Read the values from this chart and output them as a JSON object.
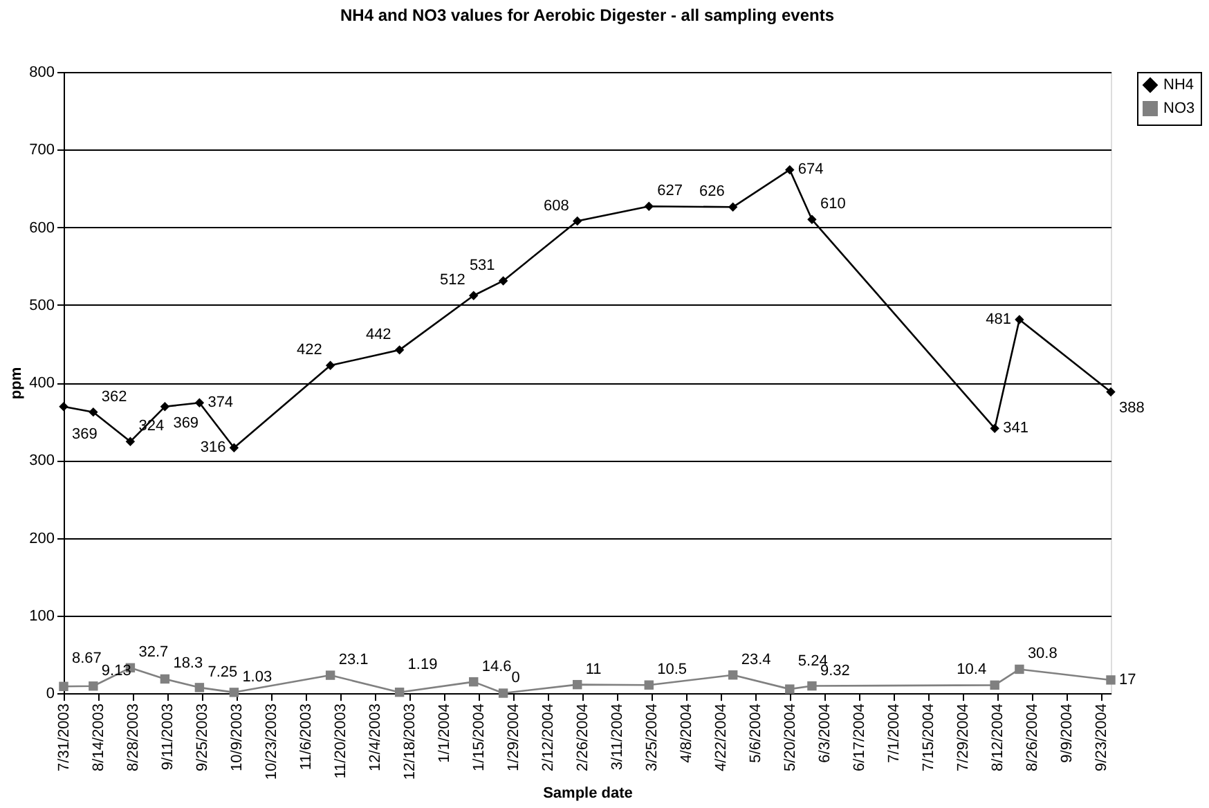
{
  "chart_data": {
    "type": "line",
    "title": "NH4 and NO3 values for Aerobic Digester - all sampling events",
    "xlabel": "Sample date",
    "ylabel": "ppm",
    "x": [
      "2003-07-31",
      "2003-08-12",
      "2003-08-27",
      "2003-09-10",
      "2003-09-24",
      "2003-10-08",
      "2003-11-16",
      "2003-12-14",
      "2004-01-13",
      "2004-01-25",
      "2004-02-24",
      "2004-03-24",
      "2004-04-27",
      "2004-05-20",
      "2004-05-29",
      "2004-08-11",
      "2004-08-21",
      "2004-09-27"
    ],
    "series": [
      {
        "name": "NH4",
        "color": "#000000",
        "marker": "diamond",
        "values": [
          369,
          362,
          324,
          369,
          374,
          316,
          422,
          442,
          512,
          531,
          608,
          627,
          626,
          674,
          610,
          341,
          481,
          388
        ]
      },
      {
        "name": "NO3",
        "color": "#808080",
        "marker": "square",
        "values": [
          8.67,
          9.13,
          32.7,
          18.3,
          7.25,
          1.03,
          23.1,
          1.19,
          14.6,
          0,
          11,
          10.5,
          23.4,
          5.24,
          9.32,
          10.4,
          30.8,
          17
        ]
      }
    ],
    "xlim": [
      "2003-07-31",
      "2004-09-27"
    ],
    "xticks": [
      {
        "value": "2003-07-31",
        "label": "7/31/2003"
      },
      {
        "value": "2003-08-14",
        "label": "8/14/2003"
      },
      {
        "value": "2003-08-28",
        "label": "8/28/2003"
      },
      {
        "value": "2003-09-11",
        "label": "9/11/2003"
      },
      {
        "value": "2003-09-25",
        "label": "9/25/2003"
      },
      {
        "value": "2003-10-09",
        "label": "10/9/2003"
      },
      {
        "value": "2003-10-23",
        "label": "10/23/2003"
      },
      {
        "value": "2003-11-06",
        "label": "11/6/2003"
      },
      {
        "value": "2003-11-20",
        "label": "11/20/2003"
      },
      {
        "value": "2003-12-04",
        "label": "12/4/2003"
      },
      {
        "value": "2003-12-18",
        "label": "12/18/2003"
      },
      {
        "value": "2004-01-01",
        "label": "1/1/2004"
      },
      {
        "value": "2004-01-15",
        "label": "1/15/2004"
      },
      {
        "value": "2004-01-29",
        "label": "1/29/2004"
      },
      {
        "value": "2004-02-12",
        "label": "2/12/2004"
      },
      {
        "value": "2004-02-26",
        "label": "2/26/2004"
      },
      {
        "value": "2004-03-11",
        "label": "3/11/2004"
      },
      {
        "value": "2004-03-25",
        "label": "3/25/2004"
      },
      {
        "value": "2004-04-08",
        "label": "4/8/2004"
      },
      {
        "value": "2004-04-22",
        "label": "4/22/2004"
      },
      {
        "value": "2004-05-06",
        "label": "5/6/2004"
      },
      {
        "value": "2004-05-20",
        "label": "5/20/2004"
      },
      {
        "value": "2004-06-03",
        "label": "6/3/2004"
      },
      {
        "value": "2004-06-17",
        "label": "6/17/2004"
      },
      {
        "value": "2004-07-01",
        "label": "7/1/2004"
      },
      {
        "value": "2004-07-15",
        "label": "7/15/2004"
      },
      {
        "value": "2004-07-29",
        "label": "7/29/2004"
      },
      {
        "value": "2004-08-12",
        "label": "8/12/2004"
      },
      {
        "value": "2004-08-26",
        "label": "8/26/2004"
      },
      {
        "value": "2004-09-09",
        "label": "9/9/2004"
      },
      {
        "value": "2004-09-23",
        "label": "9/23/2004"
      }
    ],
    "ylim": [
      0,
      800
    ],
    "yticks": [
      0,
      100,
      200,
      300,
      400,
      500,
      600,
      700,
      800
    ],
    "grid": "y",
    "legend": "top right",
    "data_labels": true,
    "line_style": "solid"
  }
}
